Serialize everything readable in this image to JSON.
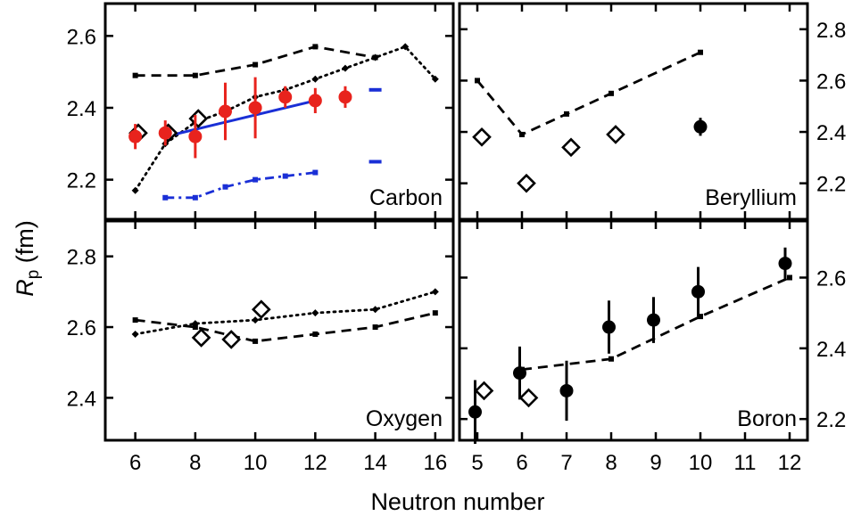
{
  "figure": {
    "xlabel": "Neutron number",
    "ylabel_main": "R",
    "ylabel_sub": "p",
    "ylabel_unit": " (fm)"
  },
  "colors": {
    "exp_red": "#e8231d",
    "fit_blue": "#1a2fd6",
    "black": "#000000"
  },
  "chart_data": [
    {
      "type": "scatter",
      "panel": "top-left",
      "label": "Carbon",
      "label_position": "bottom-right",
      "xlim": [
        5,
        16.6
      ],
      "ylim": [
        2.09,
        2.69
      ],
      "xticks": [
        6,
        8,
        10,
        12,
        14,
        16
      ],
      "show_xtick_labels": false,
      "yticks": [
        2.2,
        2.4,
        2.6
      ],
      "ytick_labels": [
        "2.2",
        "2.4",
        "2.6"
      ],
      "ytick_side": "left",
      "series": [
        {
          "style": "dashed-black-squares",
          "x": [
            6,
            8,
            10,
            12,
            14
          ],
          "y": [
            2.49,
            2.49,
            2.52,
            2.57,
            2.54
          ]
        },
        {
          "style": "dotted-black-diamonds",
          "x": [
            6,
            7,
            8,
            9,
            10,
            11,
            12,
            13,
            14,
            15,
            16
          ],
          "y": [
            2.17,
            2.3,
            2.36,
            2.39,
            2.43,
            2.45,
            2.48,
            2.51,
            2.54,
            2.57,
            2.48
          ]
        },
        {
          "style": "solid-blue",
          "x": [
            7,
            12
          ],
          "y": [
            2.32,
            2.42
          ]
        },
        {
          "style": "dashdot-blue",
          "x": [
            7,
            8,
            9,
            10,
            11,
            12
          ],
          "y": [
            2.15,
            2.15,
            2.18,
            2.2,
            2.21,
            2.22
          ]
        },
        {
          "style": "blue-ticks",
          "x": [
            14,
            14
          ],
          "y": [
            2.45,
            2.25
          ]
        },
        {
          "style": "open-diamonds",
          "x": [
            6.1,
            7.1,
            8.1
          ],
          "y": [
            2.33,
            2.33,
            2.37
          ]
        },
        {
          "style": "red-points",
          "x": [
            6,
            7,
            8,
            9,
            10,
            11,
            12,
            13
          ],
          "y": [
            2.32,
            2.33,
            2.32,
            2.39,
            2.4,
            2.43,
            2.42,
            2.43
          ],
          "err": [
            0.035,
            0.035,
            0.06,
            0.08,
            0.085,
            0.03,
            0.035,
            0.03
          ]
        }
      ]
    },
    {
      "type": "scatter",
      "panel": "top-right",
      "label": "Beryllium",
      "label_position": "bottom-right",
      "xlim": [
        4.6,
        12.4
      ],
      "ylim": [
        2.06,
        2.9
      ],
      "xticks": [
        5,
        6,
        7,
        8,
        9,
        10,
        11,
        12
      ],
      "show_xtick_labels": false,
      "yticks": [
        2.2,
        2.4,
        2.6,
        2.8
      ],
      "ytick_labels": [
        "2.2",
        "2.4",
        "2.6",
        "2.8"
      ],
      "ytick_side": "right",
      "series": [
        {
          "style": "dashed-black-squares",
          "x": [
            5,
            6,
            7,
            8,
            10
          ],
          "y": [
            2.6,
            2.39,
            2.47,
            2.55,
            2.71
          ]
        },
        {
          "style": "open-diamonds",
          "x": [
            5.1,
            6.1,
            7.1,
            8.1
          ],
          "y": [
            2.38,
            2.2,
            2.34,
            2.39
          ]
        },
        {
          "style": "black-points",
          "x": [
            10
          ],
          "y": [
            2.42
          ],
          "err": [
            0.035
          ]
        }
      ]
    },
    {
      "type": "scatter",
      "panel": "bottom-left",
      "label": "Oxygen",
      "label_position": "bottom-right",
      "xlim": [
        5,
        16.6
      ],
      "ylim": [
        2.28,
        2.9
      ],
      "xticks": [
        6,
        8,
        10,
        12,
        14,
        16
      ],
      "xtick_labels": [
        "6",
        "8",
        "10",
        "12",
        "14",
        "16"
      ],
      "show_xtick_labels": true,
      "yticks": [
        2.4,
        2.6,
        2.8
      ],
      "ytick_labels": [
        "2.4",
        "2.6",
        "2.8"
      ],
      "ytick_side": "left",
      "series": [
        {
          "style": "dashed-black-squares",
          "x": [
            6,
            8,
            10,
            12,
            14,
            16
          ],
          "y": [
            2.62,
            2.6,
            2.56,
            2.58,
            2.6,
            2.64
          ]
        },
        {
          "style": "dotted-black-diamonds",
          "x": [
            6,
            8,
            10,
            12,
            14,
            16
          ],
          "y": [
            2.58,
            2.61,
            2.62,
            2.64,
            2.65,
            2.7
          ]
        },
        {
          "style": "open-diamonds",
          "x": [
            8.2,
            9.2,
            10.2
          ],
          "y": [
            2.57,
            2.565,
            2.65
          ]
        }
      ]
    },
    {
      "type": "scatter",
      "panel": "bottom-right",
      "label": "Boron",
      "label_position": "bottom-right",
      "xlim": [
        4.6,
        12.4
      ],
      "ylim": [
        2.14,
        2.76
      ],
      "xticks": [
        5,
        6,
        7,
        8,
        9,
        10,
        11,
        12
      ],
      "xtick_labels": [
        "5",
        "6",
        "7",
        "8",
        "9",
        "10",
        "11",
        "12"
      ],
      "show_xtick_labels": true,
      "yticks": [
        2.2,
        2.4,
        2.6
      ],
      "ytick_labels": [
        "2.2",
        "2.4",
        "2.6"
      ],
      "ytick_side": "right",
      "series": [
        {
          "style": "dashed-black-squares",
          "x": [
            6,
            8,
            10,
            12
          ],
          "y": [
            2.34,
            2.37,
            2.49,
            2.6
          ]
        },
        {
          "style": "open-diamonds",
          "x": [
            5.15,
            6.15
          ],
          "y": [
            2.28,
            2.26
          ]
        },
        {
          "style": "black-points",
          "x": [
            4.95,
            5.95,
            7,
            7.95,
            8.95,
            9.95,
            11.9
          ],
          "y": [
            2.22,
            2.33,
            2.28,
            2.46,
            2.48,
            2.56,
            2.64
          ],
          "err": [
            0.09,
            0.075,
            0.085,
            0.075,
            0.065,
            0.07,
            0.045
          ]
        }
      ]
    }
  ]
}
